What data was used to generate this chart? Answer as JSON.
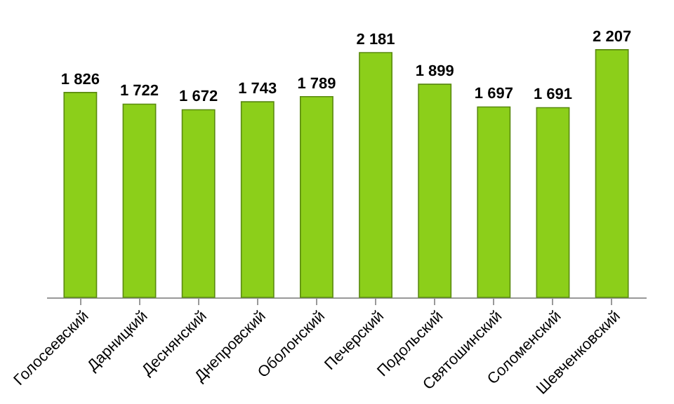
{
  "chart_data": {
    "type": "bar",
    "categories": [
      "Голосеевский",
      "Дарницкий",
      "Деснянский",
      "Днепровский",
      "Оболонский",
      "Печерский",
      "Подольский",
      "Святошинский",
      "Соломенский",
      "Шевченковский"
    ],
    "values": [
      1826,
      1722,
      1672,
      1743,
      1789,
      2181,
      1899,
      1697,
      1691,
      2207
    ],
    "value_labels": [
      "1 826",
      "1 722",
      "1 672",
      "1 743",
      "1 789",
      "2 181",
      "1 899",
      "1 697",
      "1 691",
      "2 207"
    ],
    "color": "#8ccf1a",
    "grid": false
  }
}
